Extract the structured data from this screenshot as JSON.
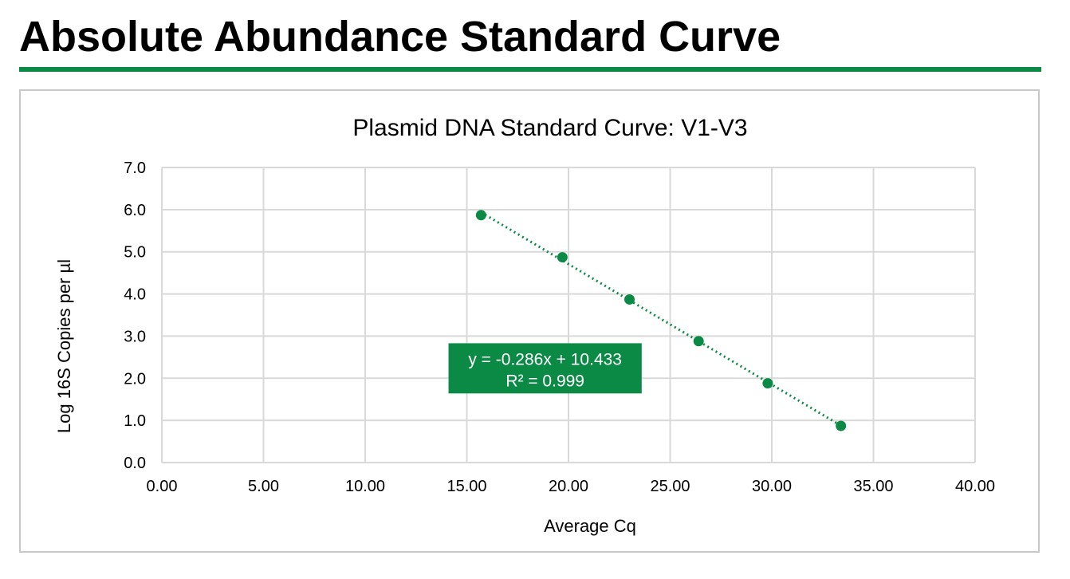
{
  "page": {
    "title": "Absolute Abundance Standard Curve",
    "accent_color": "#0b8a45"
  },
  "chart_data": {
    "type": "scatter",
    "title": "Plasmid DNA Standard Curve: V1-V3",
    "xlabel": "Average Cq",
    "ylabel": "Log 16S Copies per µl",
    "xlim": [
      0,
      40
    ],
    "ylim": [
      0,
      7
    ],
    "x_ticks": [
      "0.00",
      "5.00",
      "10.00",
      "15.00",
      "20.00",
      "25.00",
      "30.00",
      "35.00",
      "40.00"
    ],
    "y_ticks": [
      "0.0",
      "1.0",
      "2.0",
      "3.0",
      "4.0",
      "5.0",
      "6.0",
      "7.0"
    ],
    "grid": true,
    "legend": "none",
    "series": [
      {
        "x": [
          15.7,
          19.7,
          23.0,
          26.4,
          29.8,
          33.4
        ],
        "y": [
          5.87,
          4.87,
          3.87,
          2.88,
          1.88,
          0.87
        ],
        "color": "#0b8a45",
        "trendline": "linear, dotted"
      }
    ],
    "annotation": {
      "equation": "y = -0.286x + 10.433",
      "r_squared": "R² = 0.999",
      "background": "#0b8a45"
    }
  }
}
